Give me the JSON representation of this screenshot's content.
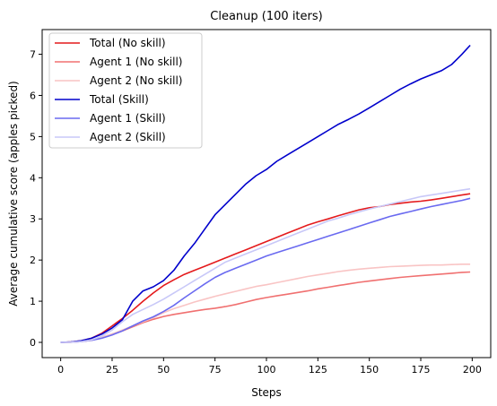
{
  "chart_data": {
    "type": "line",
    "title": "Cleanup (100 iters)",
    "xlabel": "Steps",
    "ylabel": "Average cumulative score (apples picked)",
    "xlim": [
      -9,
      209
    ],
    "ylim": [
      -0.37,
      7.6
    ],
    "xticks": [
      0,
      25,
      50,
      75,
      100,
      125,
      150,
      175,
      200
    ],
    "yticks": [
      0,
      1,
      2,
      3,
      4,
      5,
      6,
      7
    ],
    "grid": false,
    "legend_position": "upper-left",
    "series": [
      {
        "name": "Total (No skill)",
        "color": "#e41a1c",
        "points": [
          [
            0,
            0
          ],
          [
            5,
            0.01
          ],
          [
            10,
            0.04
          ],
          [
            15,
            0.1
          ],
          [
            20,
            0.22
          ],
          [
            25,
            0.4
          ],
          [
            30,
            0.58
          ],
          [
            35,
            0.78
          ],
          [
            40,
            1.0
          ],
          [
            45,
            1.2
          ],
          [
            50,
            1.38
          ],
          [
            55,
            1.52
          ],
          [
            60,
            1.65
          ],
          [
            65,
            1.75
          ],
          [
            70,
            1.85
          ],
          [
            75,
            1.95
          ],
          [
            80,
            2.05
          ],
          [
            85,
            2.15
          ],
          [
            90,
            2.25
          ],
          [
            95,
            2.35
          ],
          [
            100,
            2.45
          ],
          [
            105,
            2.55
          ],
          [
            110,
            2.65
          ],
          [
            115,
            2.75
          ],
          [
            120,
            2.85
          ],
          [
            125,
            2.93
          ],
          [
            130,
            3.0
          ],
          [
            135,
            3.08
          ],
          [
            140,
            3.15
          ],
          [
            145,
            3.22
          ],
          [
            150,
            3.27
          ],
          [
            155,
            3.3
          ],
          [
            160,
            3.35
          ],
          [
            165,
            3.38
          ],
          [
            170,
            3.41
          ],
          [
            175,
            3.43
          ],
          [
            180,
            3.46
          ],
          [
            185,
            3.5
          ],
          [
            190,
            3.54
          ],
          [
            195,
            3.58
          ],
          [
            199,
            3.61
          ]
        ]
      },
      {
        "name": "Agent 1 (No skill)",
        "color": "#f07070",
        "points": [
          [
            0,
            0
          ],
          [
            5,
            0.005
          ],
          [
            10,
            0.02
          ],
          [
            15,
            0.05
          ],
          [
            20,
            0.12
          ],
          [
            25,
            0.2
          ],
          [
            30,
            0.28
          ],
          [
            35,
            0.38
          ],
          [
            40,
            0.48
          ],
          [
            45,
            0.56
          ],
          [
            50,
            0.63
          ],
          [
            55,
            0.68
          ],
          [
            60,
            0.72
          ],
          [
            65,
            0.76
          ],
          [
            70,
            0.8
          ],
          [
            75,
            0.83
          ],
          [
            80,
            0.87
          ],
          [
            85,
            0.92
          ],
          [
            90,
            0.98
          ],
          [
            95,
            1.04
          ],
          [
            100,
            1.09
          ],
          [
            105,
            1.13
          ],
          [
            110,
            1.17
          ],
          [
            115,
            1.21
          ],
          [
            120,
            1.25
          ],
          [
            125,
            1.3
          ],
          [
            130,
            1.34
          ],
          [
            135,
            1.38
          ],
          [
            140,
            1.42
          ],
          [
            145,
            1.46
          ],
          [
            150,
            1.49
          ],
          [
            155,
            1.52
          ],
          [
            160,
            1.55
          ],
          [
            165,
            1.58
          ],
          [
            170,
            1.6
          ],
          [
            175,
            1.62
          ],
          [
            180,
            1.64
          ],
          [
            185,
            1.66
          ],
          [
            190,
            1.68
          ],
          [
            195,
            1.7
          ],
          [
            199,
            1.71
          ]
        ]
      },
      {
        "name": "Agent 2 (No skill)",
        "color": "#f9c4c4",
        "points": [
          [
            0,
            0
          ],
          [
            5,
            0.005
          ],
          [
            10,
            0.02
          ],
          [
            15,
            0.06
          ],
          [
            20,
            0.12
          ],
          [
            25,
            0.2
          ],
          [
            30,
            0.3
          ],
          [
            35,
            0.4
          ],
          [
            40,
            0.5
          ],
          [
            45,
            0.6
          ],
          [
            50,
            0.72
          ],
          [
            55,
            0.82
          ],
          [
            60,
            0.9
          ],
          [
            65,
            0.98
          ],
          [
            70,
            1.05
          ],
          [
            75,
            1.12
          ],
          [
            80,
            1.18
          ],
          [
            85,
            1.24
          ],
          [
            90,
            1.3
          ],
          [
            95,
            1.36
          ],
          [
            100,
            1.4
          ],
          [
            105,
            1.45
          ],
          [
            110,
            1.5
          ],
          [
            115,
            1.55
          ],
          [
            120,
            1.6
          ],
          [
            125,
            1.64
          ],
          [
            130,
            1.68
          ],
          [
            135,
            1.72
          ],
          [
            140,
            1.75
          ],
          [
            145,
            1.78
          ],
          [
            150,
            1.8
          ],
          [
            155,
            1.82
          ],
          [
            160,
            1.84
          ],
          [
            165,
            1.85
          ],
          [
            170,
            1.86
          ],
          [
            175,
            1.87
          ],
          [
            180,
            1.88
          ],
          [
            185,
            1.88
          ],
          [
            190,
            1.89
          ],
          [
            195,
            1.9
          ],
          [
            199,
            1.9
          ]
        ]
      },
      {
        "name": "Total (Skill)",
        "color": "#0000cc",
        "points": [
          [
            0,
            0
          ],
          [
            5,
            0.01
          ],
          [
            10,
            0.04
          ],
          [
            15,
            0.1
          ],
          [
            20,
            0.2
          ],
          [
            25,
            0.35
          ],
          [
            30,
            0.55
          ],
          [
            35,
            1.0
          ],
          [
            40,
            1.25
          ],
          [
            45,
            1.35
          ],
          [
            50,
            1.5
          ],
          [
            55,
            1.75
          ],
          [
            60,
            2.1
          ],
          [
            65,
            2.4
          ],
          [
            70,
            2.75
          ],
          [
            75,
            3.1
          ],
          [
            80,
            3.35
          ],
          [
            85,
            3.6
          ],
          [
            90,
            3.85
          ],
          [
            95,
            4.05
          ],
          [
            100,
            4.2
          ],
          [
            105,
            4.4
          ],
          [
            110,
            4.55
          ],
          [
            115,
            4.7
          ],
          [
            120,
            4.85
          ],
          [
            125,
            5.0
          ],
          [
            130,
            5.15
          ],
          [
            135,
            5.3
          ],
          [
            140,
            5.42
          ],
          [
            145,
            5.55
          ],
          [
            150,
            5.7
          ],
          [
            155,
            5.85
          ],
          [
            160,
            6.0
          ],
          [
            165,
            6.15
          ],
          [
            170,
            6.28
          ],
          [
            175,
            6.4
          ],
          [
            180,
            6.5
          ],
          [
            185,
            6.6
          ],
          [
            190,
            6.75
          ],
          [
            195,
            7.0
          ],
          [
            199,
            7.22
          ]
        ]
      },
      {
        "name": "Agent 1 (Skill)",
        "color": "#6a6af0",
        "points": [
          [
            0,
            0
          ],
          [
            5,
            0.005
          ],
          [
            10,
            0.02
          ],
          [
            15,
            0.05
          ],
          [
            20,
            0.1
          ],
          [
            25,
            0.18
          ],
          [
            30,
            0.28
          ],
          [
            35,
            0.4
          ],
          [
            40,
            0.52
          ],
          [
            45,
            0.62
          ],
          [
            50,
            0.75
          ],
          [
            55,
            0.9
          ],
          [
            60,
            1.08
          ],
          [
            65,
            1.25
          ],
          [
            70,
            1.42
          ],
          [
            75,
            1.58
          ],
          [
            80,
            1.7
          ],
          [
            85,
            1.8
          ],
          [
            90,
            1.9
          ],
          [
            95,
            2.0
          ],
          [
            100,
            2.1
          ],
          [
            105,
            2.18
          ],
          [
            110,
            2.26
          ],
          [
            115,
            2.34
          ],
          [
            120,
            2.42
          ],
          [
            125,
            2.5
          ],
          [
            130,
            2.58
          ],
          [
            135,
            2.66
          ],
          [
            140,
            2.74
          ],
          [
            145,
            2.82
          ],
          [
            150,
            2.9
          ],
          [
            155,
            2.98
          ],
          [
            160,
            3.06
          ],
          [
            165,
            3.12
          ],
          [
            170,
            3.18
          ],
          [
            175,
            3.24
          ],
          [
            180,
            3.3
          ],
          [
            185,
            3.35
          ],
          [
            190,
            3.4
          ],
          [
            195,
            3.45
          ],
          [
            199,
            3.5
          ]
        ]
      },
      {
        "name": "Agent 2 (Skill)",
        "color": "#c8c8f8",
        "points": [
          [
            0,
            0
          ],
          [
            5,
            0.005
          ],
          [
            10,
            0.02
          ],
          [
            15,
            0.06
          ],
          [
            20,
            0.15
          ],
          [
            25,
            0.3
          ],
          [
            30,
            0.5
          ],
          [
            35,
            0.68
          ],
          [
            40,
            0.8
          ],
          [
            45,
            0.92
          ],
          [
            50,
            1.05
          ],
          [
            55,
            1.2
          ],
          [
            60,
            1.35
          ],
          [
            65,
            1.5
          ],
          [
            70,
            1.65
          ],
          [
            75,
            1.8
          ],
          [
            80,
            1.95
          ],
          [
            85,
            2.05
          ],
          [
            90,
            2.15
          ],
          [
            95,
            2.25
          ],
          [
            100,
            2.35
          ],
          [
            105,
            2.45
          ],
          [
            110,
            2.55
          ],
          [
            115,
            2.65
          ],
          [
            120,
            2.75
          ],
          [
            125,
            2.85
          ],
          [
            130,
            2.95
          ],
          [
            135,
            3.02
          ],
          [
            140,
            3.1
          ],
          [
            145,
            3.17
          ],
          [
            150,
            3.24
          ],
          [
            155,
            3.3
          ],
          [
            160,
            3.36
          ],
          [
            165,
            3.42
          ],
          [
            170,
            3.48
          ],
          [
            175,
            3.54
          ],
          [
            180,
            3.58
          ],
          [
            185,
            3.62
          ],
          [
            190,
            3.66
          ],
          [
            195,
            3.7
          ],
          [
            199,
            3.73
          ]
        ]
      }
    ]
  }
}
